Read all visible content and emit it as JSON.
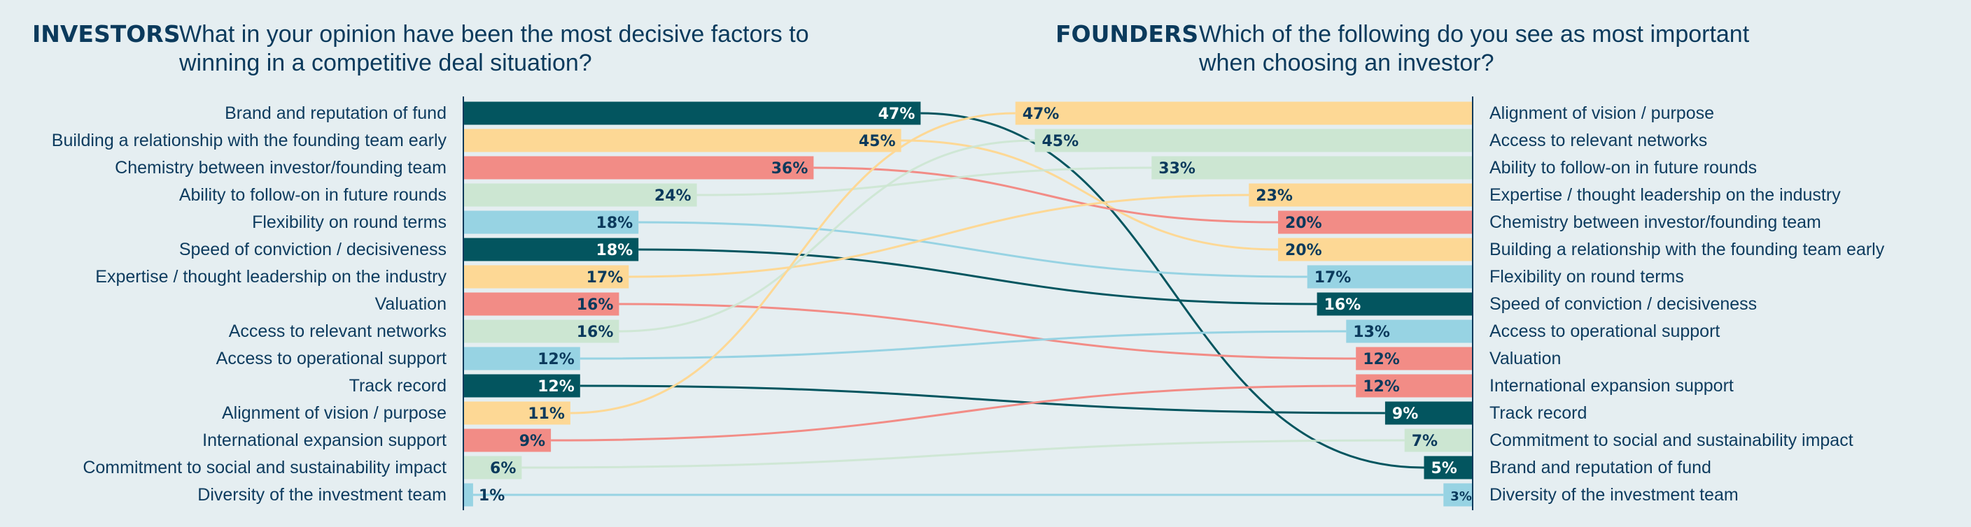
{
  "investors": {
    "tag": "INVESTORS",
    "question_lines": [
      "What in your opinion have been the most decisive factors to",
      "winning in a competitive deal situation?"
    ]
  },
  "founders": {
    "tag": "FOUNDERS",
    "question_lines": [
      "Which of the following do you see as most important",
      "when choosing an investor?"
    ]
  },
  "colors": {
    "teal": "#03555f",
    "yellow": "#fdd895",
    "red": "#f28c86",
    "green": "#cce6d2",
    "blue": "#97d3e3",
    "background": "#e5eef1",
    "text": "#0b3a5c"
  },
  "chart_data": [
    {
      "type": "bar",
      "orientation": "horizontal",
      "side": "investors",
      "categories": [
        "Brand and reputation of fund",
        "Building a relationship with the founding team early",
        "Chemistry between investor/founding team",
        "Ability to follow-on in future rounds",
        "Flexibility on round terms",
        "Speed of conviction / decisiveness",
        "Expertise / thought leadership on the industry",
        "Valuation",
        "Access to relevant networks",
        "Access to operational support",
        "Track record",
        "Alignment of vision / purpose",
        "International expansion support",
        "Commitment to social and sustainability impact",
        "Diversity of the investment team"
      ],
      "values": [
        47,
        45,
        36,
        24,
        18,
        18,
        17,
        16,
        16,
        12,
        12,
        11,
        9,
        6,
        1
      ],
      "value_labels": [
        "47%",
        "45%",
        "36%",
        "24%",
        "18%",
        "18%",
        "17%",
        "16%",
        "16%",
        "12%",
        "12%",
        "11%",
        "9%",
        "6%",
        "1%"
      ],
      "unit": "%"
    },
    {
      "type": "bar",
      "orientation": "horizontal",
      "side": "founders",
      "categories": [
        "Alignment of vision / purpose",
        "Access to relevant networks",
        "Ability to follow-on in future rounds",
        "Expertise / thought leadership on the industry",
        "Chemistry between investor/founding team",
        "Building a relationship with the founding team early",
        "Flexibility on round terms",
        "Speed of conviction / decisiveness",
        "Access to operational support",
        "Valuation",
        "International expansion support",
        "Track record",
        "Commitment to social and sustainability impact",
        "Brand and reputation of fund",
        "Diversity of the investment team"
      ],
      "values": [
        47,
        45,
        33,
        23,
        20,
        20,
        17,
        16,
        13,
        12,
        12,
        9,
        7,
        5,
        3
      ],
      "value_labels": [
        "47%",
        "45%",
        "33%",
        "23%",
        "20%",
        "20%",
        "17%",
        "16%",
        "13%",
        "12%",
        "12%",
        "9%",
        "7%",
        "5%",
        "3%"
      ],
      "unit": "%"
    }
  ],
  "factor_colors": {
    "Brand and reputation of fund": "teal",
    "Building a relationship with the founding team early": "yellow",
    "Chemistry between investor/founding team": "red",
    "Ability to follow-on in future rounds": "green",
    "Flexibility on round terms": "blue",
    "Speed of conviction / decisiveness": "teal",
    "Expertise / thought leadership on the industry": "yellow",
    "Valuation": "red",
    "Access to relevant networks": "green",
    "Access to operational support": "blue",
    "Track record": "teal",
    "Alignment of vision / purpose": "yellow",
    "International expansion support": "red",
    "Commitment to social and sustainability impact": "green",
    "Diversity of the investment team": "blue"
  }
}
